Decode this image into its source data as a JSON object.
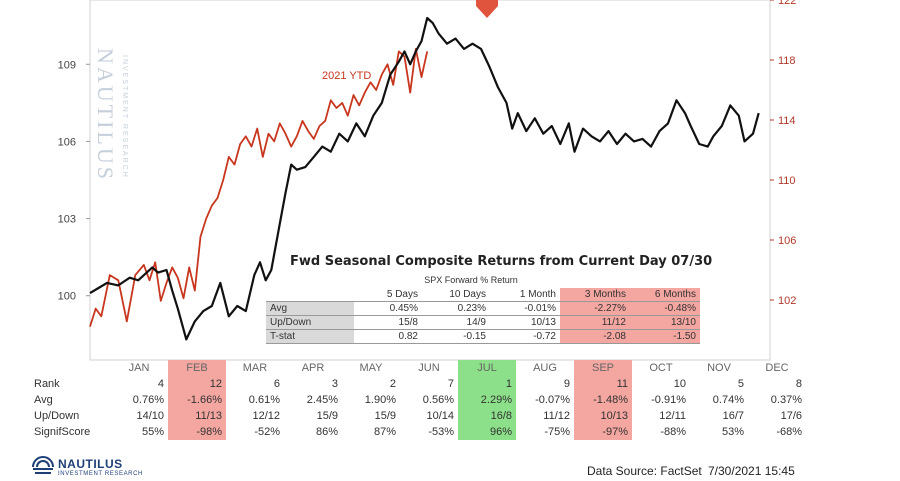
{
  "chart_data": {
    "type": "line",
    "left_axis": {
      "ticks": [
        100,
        103,
        106,
        109
      ],
      "range": [
        97.5,
        111.5
      ]
    },
    "right_axis": {
      "ticks": [
        102,
        106,
        110,
        114,
        118,
        122
      ],
      "range": [
        98,
        122
      ]
    },
    "months": [
      "JAN",
      "FEB",
      "MAR",
      "APR",
      "MAY",
      "JUN",
      "JUL",
      "AUG",
      "SEP",
      "OCT",
      "NOV",
      "DEC"
    ],
    "series": [
      {
        "name": "",
        "color": "#111111",
        "axis": "left",
        "x": [
          0,
          0.15,
          0.3,
          0.5,
          0.7,
          0.85,
          1.0,
          1.1,
          1.2,
          1.35,
          1.45,
          1.55,
          1.7,
          1.85,
          2.0,
          2.15,
          2.3,
          2.45,
          2.6,
          2.75,
          2.9,
          3.0,
          3.1,
          3.2,
          3.35,
          3.45,
          3.55,
          3.65,
          3.8,
          3.95,
          4.1,
          4.25,
          4.4,
          4.55,
          4.7,
          4.85,
          5.0,
          5.15,
          5.3,
          5.45,
          5.55,
          5.65,
          5.75,
          5.85,
          5.95,
          6.05,
          6.15,
          6.3,
          6.45,
          6.6,
          6.75,
          6.9,
          7.05,
          7.2,
          7.35,
          7.45,
          7.55,
          7.7,
          7.85,
          8.0,
          8.15,
          8.3,
          8.45,
          8.55,
          8.7,
          8.85,
          9.0,
          9.15,
          9.3,
          9.45,
          9.6,
          9.75,
          9.9,
          10.05,
          10.2,
          10.35,
          10.5,
          10.6,
          10.75,
          10.9,
          11.0,
          11.15,
          11.3,
          11.45,
          11.55,
          11.7,
          11.8
        ],
        "values": [
          100.1,
          100.3,
          100.5,
          100.4,
          100.7,
          100.6,
          100.9,
          101.1,
          100.9,
          101.0,
          100.2,
          99.5,
          98.3,
          99.0,
          99.4,
          99.6,
          100.5,
          99.2,
          99.6,
          99.4,
          100.8,
          101.3,
          100.6,
          101.0,
          102.8,
          104.0,
          105.1,
          104.9,
          105.0,
          105.4,
          105.8,
          105.6,
          106.3,
          106.0,
          106.7,
          106.2,
          107.0,
          107.5,
          108.6,
          109.1,
          109.5,
          109.0,
          109.5,
          109.9,
          110.8,
          110.6,
          110.2,
          109.8,
          110.0,
          109.6,
          109.8,
          109.6,
          108.9,
          108.1,
          107.5,
          106.5,
          107.1,
          106.4,
          106.9,
          106.3,
          106.6,
          105.9,
          106.7,
          105.6,
          106.5,
          106.2,
          106.0,
          106.4,
          105.9,
          106.3,
          106.0,
          106.1,
          105.8,
          106.4,
          106.7,
          107.6,
          107.1,
          106.6,
          105.9,
          105.8,
          106.2,
          106.6,
          107.4,
          107.0,
          106.0,
          106.3,
          107.1
        ]
      },
      {
        "name": "2021 YTD",
        "color": "#c8361e",
        "axis": "left",
        "x": [
          0,
          0.1,
          0.2,
          0.35,
          0.5,
          0.65,
          0.8,
          0.95,
          1.05,
          1.15,
          1.25,
          1.35,
          1.45,
          1.55,
          1.65,
          1.75,
          1.85,
          1.95,
          2.05,
          2.15,
          2.25,
          2.35,
          2.45,
          2.55,
          2.65,
          2.75,
          2.85,
          2.95,
          3.05,
          3.15,
          3.25,
          3.35,
          3.45,
          3.55,
          3.65,
          3.75,
          3.85,
          3.95,
          4.05,
          4.15,
          4.25,
          4.35,
          4.45,
          4.55,
          4.65,
          4.75,
          4.85,
          4.95,
          5.05,
          5.15,
          5.25,
          5.35,
          5.45,
          5.55,
          5.65,
          5.75,
          5.85,
          5.95
        ],
        "values": [
          98.8,
          99.5,
          99.2,
          100.8,
          100.6,
          99.0,
          100.8,
          101.2,
          100.6,
          101.3,
          99.8,
          100.5,
          101.1,
          100.7,
          99.9,
          101.1,
          100.2,
          102.3,
          103.0,
          103.5,
          103.8,
          104.5,
          105.4,
          105.1,
          105.9,
          106.2,
          105.8,
          106.5,
          105.4,
          106.3,
          106.0,
          106.7,
          106.3,
          105.8,
          106.2,
          106.8,
          106.4,
          106.1,
          106.6,
          106.8,
          107.6,
          107.3,
          107.5,
          107.0,
          107.8,
          107.4,
          107.9,
          108.3,
          108.0,
          108.6,
          109.0,
          108.2,
          109.5,
          109.3,
          107.9,
          109.6,
          108.5,
          109.5
        ]
      }
    ]
  },
  "forward_table": {
    "title": "Fwd Seasonal Composite Returns from Current Day 07/30",
    "subtitle": "SPX Forward % Return",
    "columns": [
      "5 Days",
      "10 Days",
      "1 Month",
      "3 Months",
      "6 Months"
    ],
    "rows": [
      {
        "label": "Avg",
        "values": [
          "0.45%",
          "0.23%",
          "-0.01%",
          "-2.27%",
          "-0.48%"
        ]
      },
      {
        "label": "Up/Down",
        "values": [
          "15/8",
          "14/9",
          "10/13",
          "11/12",
          "13/10"
        ]
      },
      {
        "label": "T-stat",
        "values": [
          "0.82",
          "-0.15",
          "-0.72",
          "-2.08",
          "-1.50"
        ]
      }
    ]
  },
  "monthly_table": {
    "months": [
      "JAN",
      "FEB",
      "MAR",
      "APR",
      "MAY",
      "JUN",
      "JUL",
      "AUG",
      "SEP",
      "OCT",
      "NOV",
      "DEC"
    ],
    "rows": [
      {
        "label": "Rank",
        "values": [
          "4",
          "12",
          "6",
          "3",
          "2",
          "7",
          "1",
          "9",
          "11",
          "10",
          "5",
          "8"
        ]
      },
      {
        "label": "Avg",
        "values": [
          "0.76%",
          "-1.66%",
          "0.61%",
          "2.45%",
          "1.90%",
          "0.56%",
          "2.29%",
          "-0.07%",
          "-1.48%",
          "-0.91%",
          "0.74%",
          "0.37%"
        ]
      },
      {
        "label": "Up/Down",
        "values": [
          "14/10",
          "11/13",
          "12/12",
          "15/9",
          "15/9",
          "10/14",
          "16/8",
          "11/12",
          "10/13",
          "12/11",
          "16/7",
          "17/6"
        ]
      },
      {
        "label": "SignifScore",
        "values": [
          "55%",
          "-98%",
          "-52%",
          "86%",
          "87%",
          "-53%",
          "96%",
          "-75%",
          "-97%",
          "-88%",
          "53%",
          "-68%"
        ]
      }
    ]
  },
  "footer": {
    "logo_text": "NAUTILUS",
    "logo_sub": "INVESTMENT RESEARCH",
    "source": "Data Source: FactSet",
    "timestamp": "7/30/2021 15:45"
  },
  "watermark": {
    "text": "NAUTILUS",
    "sub": "INVESTMENT RESEARCH"
  },
  "colors": {
    "black_series": "#111111",
    "red_series": "#c8361e",
    "highlight_red": "#f4a6a0",
    "highlight_green": "#8de08a",
    "arrow": "#e0533d"
  }
}
